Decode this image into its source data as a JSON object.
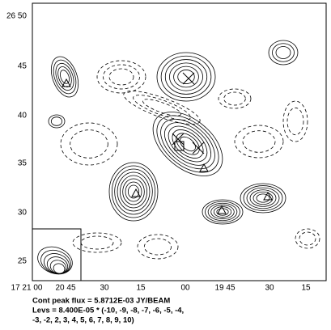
{
  "axes": {
    "y_ticks": [
      "26 50",
      "45",
      "40",
      "35",
      "30",
      "25"
    ],
    "x_ticks": [
      "17 21 00",
      "20 45",
      "30",
      "15",
      "00",
      "19 45",
      "30",
      "15"
    ]
  },
  "caption": {
    "peak_flux": "Cont peak flux =  5.8712E-03 JY/BEAM",
    "levels": [
      "Levs = 8.400E-05 * (-10, -9, -8, -7, -6, -5, -4,",
      "-3, -2, 2, 3, 4, 5, 6, 7, 8, 9, 10)"
    ]
  }
}
